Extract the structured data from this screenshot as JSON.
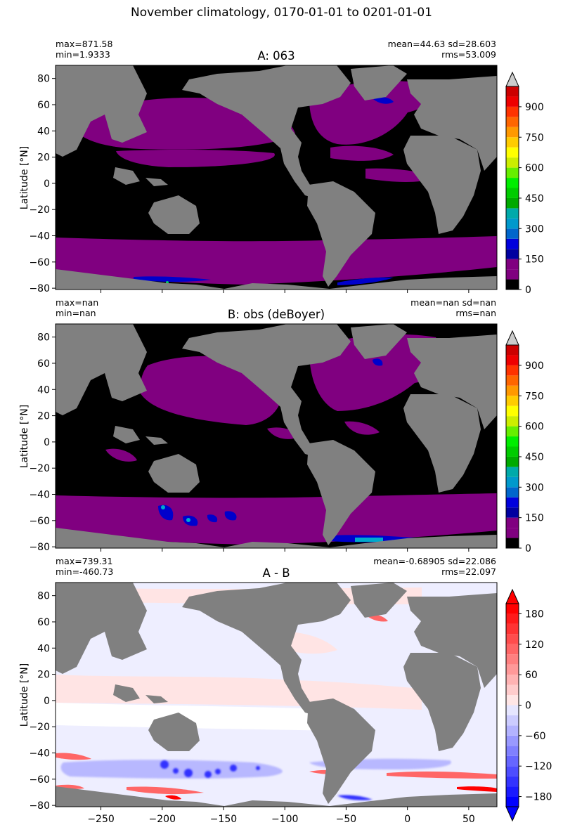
{
  "suptitle": "November climatology, 0170-01-01 to 0201-01-01",
  "colors": {
    "land": "#808080",
    "ocean_zero": "#000000",
    "purple": "#800080",
    "diff_neutral": "#ffffff"
  },
  "panels": [
    {
      "title": "A: 063",
      "stats_left": [
        "max=871.58",
        "min=1.9333"
      ],
      "stats_right": [
        "mean=44.63 sd=28.603",
        "rms=53.009"
      ]
    },
    {
      "title": "B: obs (deBoyer)",
      "stats_left": [
        "max=nan",
        "min=nan"
      ],
      "stats_right": [
        "mean=nan sd=nan",
        "rms=nan"
      ]
    },
    {
      "title": "A - B",
      "stats_left": [
        "max=739.31",
        "min=-460.73"
      ],
      "stats_right": [
        "mean=-0.68905 sd=22.086",
        "rms=22.097"
      ]
    }
  ],
  "ylabel": "Latitude [°N]",
  "chart_data": [
    {
      "type": "heatmap",
      "title": "A: 063",
      "ylabel": "Latitude [°N]",
      "xlim": [
        -287,
        73
      ],
      "ylim": [
        -81,
        90
      ],
      "yticks": [
        -80,
        -60,
        -40,
        -20,
        0,
        20,
        40,
        60,
        80
      ],
      "colorbar": {
        "ticks": [
          0,
          150,
          300,
          450,
          600,
          750,
          900
        ],
        "boundaries": [
          0,
          50,
          100,
          150,
          200,
          250,
          300,
          350,
          400,
          450,
          500,
          550,
          600,
          650,
          700,
          750,
          800,
          850,
          900,
          950,
          1000
        ],
        "extend": "max",
        "colors": [
          "#000000",
          "#800080",
          "#800080",
          "#0000a0",
          "#0000dd",
          "#0066cc",
          "#0099cc",
          "#00aaaa",
          "#00aa00",
          "#00cc00",
          "#00ee00",
          "#66ee00",
          "#ccee00",
          "#ffff00",
          "#ffcc00",
          "#ff9900",
          "#ff6600",
          "#ff3300",
          "#ee0000",
          "#cc0000"
        ],
        "over_color": "#cccccc"
      }
    },
    {
      "type": "heatmap",
      "title": "B: obs (deBoyer)",
      "ylabel": "Latitude [°N]",
      "xlim": [
        -287,
        73
      ],
      "ylim": [
        -81,
        90
      ],
      "yticks": [
        -80,
        -60,
        -40,
        -20,
        0,
        20,
        40,
        60,
        80
      ],
      "colorbar": {
        "ticks": [
          0,
          150,
          300,
          450,
          600,
          750,
          900
        ],
        "boundaries": [
          0,
          50,
          100,
          150,
          200,
          250,
          300,
          350,
          400,
          450,
          500,
          550,
          600,
          650,
          700,
          750,
          800,
          850,
          900,
          950,
          1000
        ],
        "extend": "max",
        "colors": [
          "#000000",
          "#800080",
          "#800080",
          "#0000a0",
          "#0000dd",
          "#0066cc",
          "#0099cc",
          "#00aaaa",
          "#00aa00",
          "#00cc00",
          "#00ee00",
          "#66ee00",
          "#ccee00",
          "#ffff00",
          "#ffcc00",
          "#ff9900",
          "#ff6600",
          "#ff3300",
          "#ee0000",
          "#cc0000"
        ],
        "over_color": "#cccccc"
      }
    },
    {
      "type": "heatmap",
      "title": "A - B",
      "ylabel": "Latitude [°N]",
      "xlim": [
        -287,
        73
      ],
      "ylim": [
        -81,
        90
      ],
      "xticks": [
        -250,
        -200,
        -150,
        -100,
        -50,
        0,
        50
      ],
      "yticks": [
        -80,
        -60,
        -40,
        -20,
        0,
        20,
        40,
        60,
        80
      ],
      "colorbar": {
        "ticks": [
          -180,
          -120,
          -60,
          0,
          60,
          120,
          180
        ],
        "boundaries": [
          -200,
          -180,
          -160,
          -140,
          -120,
          -100,
          -80,
          -60,
          -40,
          -20,
          0,
          20,
          40,
          60,
          80,
          100,
          120,
          140,
          160,
          180,
          200
        ],
        "extend": "both",
        "colors": [
          "#0000ff",
          "#1a1aff",
          "#3333ff",
          "#4d4dff",
          "#6666ff",
          "#8080ff",
          "#9999ff",
          "#b3b3ff",
          "#ccccff",
          "#e6e6ff",
          "#ffe6e6",
          "#ffcccc",
          "#ffb3b3",
          "#ff9999",
          "#ff8080",
          "#ff6666",
          "#ff4d4d",
          "#ff3333",
          "#ff1a1a",
          "#ff0000"
        ],
        "under_color": "#0000ff",
        "over_color": "#ff0000"
      }
    }
  ]
}
